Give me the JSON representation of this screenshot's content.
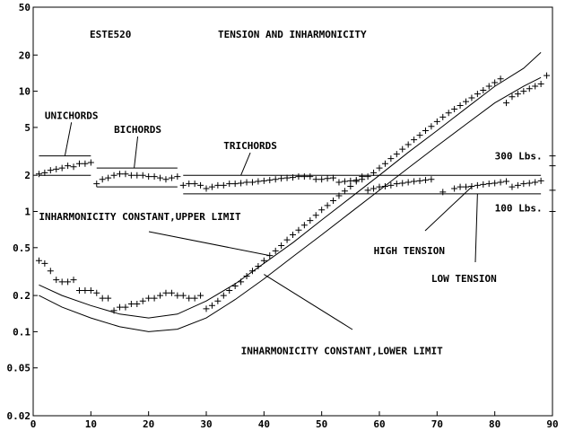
{
  "chart_data": {
    "type": "scatter",
    "title": "TENSION AND INHARMONICITY",
    "subtitle": "ESTE520",
    "xlabel": "",
    "ylabel": "",
    "xlim": [
      0,
      90
    ],
    "ylim": [
      0.02,
      50
    ],
    "yscale": "log",
    "grid": false,
    "x_ticks": [
      0,
      10,
      20,
      30,
      40,
      50,
      60,
      70,
      80,
      90
    ],
    "y_ticks": [
      0.02,
      0.05,
      0.1,
      0.2,
      0.5,
      1,
      2,
      5,
      10,
      20,
      50
    ],
    "y_tick_labels": [
      "0.02",
      "0.05",
      "0.1",
      "0.2",
      "0.5",
      "1",
      "2",
      "5",
      "10",
      "20",
      "50"
    ],
    "series": [
      {
        "name": "",
        "marker": "plus",
        "points": [
          [
            1,
            0.39
          ],
          [
            2,
            0.37
          ],
          [
            3,
            0.32
          ],
          [
            4,
            0.27
          ],
          [
            5,
            0.26
          ],
          [
            6,
            0.26
          ],
          [
            7,
            0.27
          ],
          [
            8,
            0.22
          ],
          [
            9,
            0.22
          ],
          [
            10,
            0.22
          ],
          [
            11,
            0.21
          ],
          [
            12,
            0.19
          ],
          [
            13,
            0.19
          ],
          [
            14,
            0.15
          ],
          [
            15,
            0.16
          ],
          [
            16,
            0.16
          ],
          [
            17,
            0.17
          ],
          [
            18,
            0.17
          ],
          [
            19,
            0.18
          ],
          [
            20,
            0.19
          ],
          [
            21,
            0.19
          ],
          [
            22,
            0.2
          ],
          [
            23,
            0.21
          ],
          [
            24,
            0.21
          ],
          [
            25,
            0.2
          ],
          [
            26,
            0.2
          ],
          [
            27,
            0.19
          ],
          [
            28,
            0.19
          ],
          [
            29,
            0.2
          ],
          [
            30,
            0.155
          ],
          [
            31,
            0.165
          ],
          [
            32,
            0.18
          ],
          [
            33,
            0.2
          ],
          [
            34,
            0.22
          ],
          [
            35,
            0.24
          ],
          [
            36,
            0.26
          ],
          [
            37,
            0.29
          ],
          [
            38,
            0.32
          ],
          [
            39,
            0.35
          ],
          [
            40,
            0.39
          ],
          [
            41,
            0.43
          ],
          [
            42,
            0.47
          ],
          [
            43,
            0.52
          ],
          [
            44,
            0.58
          ],
          [
            45,
            0.64
          ],
          [
            46,
            0.7
          ],
          [
            47,
            0.77
          ],
          [
            48,
            0.84
          ],
          [
            49,
            0.93
          ],
          [
            50,
            1.03
          ],
          [
            51,
            1.12
          ],
          [
            52,
            1.23
          ],
          [
            53,
            1.35
          ],
          [
            54,
            1.48
          ],
          [
            55,
            1.62
          ],
          [
            56,
            1.78
          ],
          [
            57,
            1.95
          ],
          [
            58,
            1.95
          ],
          [
            59,
            2.1
          ],
          [
            60,
            2.3
          ],
          [
            61,
            2.5
          ],
          [
            62,
            2.75
          ],
          [
            63,
            3.0
          ],
          [
            64,
            3.3
          ],
          [
            65,
            3.6
          ],
          [
            66,
            3.95
          ],
          [
            67,
            4.3
          ],
          [
            68,
            4.7
          ],
          [
            69,
            5.1
          ],
          [
            70,
            5.6
          ],
          [
            71,
            6.1
          ],
          [
            72,
            6.6
          ],
          [
            73,
            7.1
          ],
          [
            74,
            7.6
          ],
          [
            75,
            8.2
          ],
          [
            76,
            8.8
          ],
          [
            77,
            9.5
          ],
          [
            78,
            10.2
          ],
          [
            79,
            11.0
          ],
          [
            80,
            11.8
          ],
          [
            81,
            12.7
          ],
          [
            82,
            8.0
          ],
          [
            83,
            9.0
          ],
          [
            84,
            9.5
          ],
          [
            85,
            10.0
          ],
          [
            86,
            10.5
          ],
          [
            87,
            11.0
          ],
          [
            88,
            11.5
          ],
          [
            89,
            13.5
          ],
          [
            1,
            2.05
          ],
          [
            2,
            2.1
          ],
          [
            3,
            2.2
          ],
          [
            4,
            2.25
          ],
          [
            5,
            2.3
          ],
          [
            6,
            2.4
          ],
          [
            7,
            2.35
          ],
          [
            8,
            2.5
          ],
          [
            9,
            2.5
          ],
          [
            10,
            2.55
          ],
          [
            11,
            1.7
          ],
          [
            12,
            1.85
          ],
          [
            13,
            1.9
          ],
          [
            14,
            2.0
          ],
          [
            15,
            2.05
          ],
          [
            16,
            2.05
          ],
          [
            17,
            2.0
          ],
          [
            18,
            2.0
          ],
          [
            19,
            2.0
          ],
          [
            20,
            1.95
          ],
          [
            21,
            1.95
          ],
          [
            22,
            1.9
          ],
          [
            23,
            1.85
          ],
          [
            24,
            1.9
          ],
          [
            25,
            1.95
          ],
          [
            26,
            1.65
          ],
          [
            27,
            1.7
          ],
          [
            28,
            1.7
          ],
          [
            29,
            1.65
          ],
          [
            30,
            1.55
          ],
          [
            31,
            1.6
          ],
          [
            32,
            1.65
          ],
          [
            33,
            1.65
          ],
          [
            34,
            1.7
          ],
          [
            35,
            1.7
          ],
          [
            36,
            1.72
          ],
          [
            37,
            1.75
          ],
          [
            38,
            1.75
          ],
          [
            39,
            1.78
          ],
          [
            40,
            1.8
          ],
          [
            41,
            1.82
          ],
          [
            42,
            1.85
          ],
          [
            43,
            1.88
          ],
          [
            44,
            1.9
          ],
          [
            45,
            1.92
          ],
          [
            46,
            1.95
          ],
          [
            47,
            1.95
          ],
          [
            48,
            1.95
          ],
          [
            49,
            1.85
          ],
          [
            50,
            1.85
          ],
          [
            51,
            1.88
          ],
          [
            52,
            1.9
          ],
          [
            53,
            1.75
          ],
          [
            54,
            1.78
          ],
          [
            55,
            1.8
          ],
          [
            56,
            1.82
          ],
          [
            57,
            1.85
          ],
          [
            58,
            1.5
          ],
          [
            59,
            1.55
          ],
          [
            60,
            1.6
          ],
          [
            61,
            1.62
          ],
          [
            62,
            1.65
          ],
          [
            63,
            1.7
          ],
          [
            64,
            1.72
          ],
          [
            65,
            1.75
          ],
          [
            66,
            1.78
          ],
          [
            67,
            1.8
          ],
          [
            68,
            1.82
          ],
          [
            69,
            1.85
          ],
          [
            71,
            1.45
          ],
          [
            73,
            1.55
          ],
          [
            74,
            1.6
          ],
          [
            75,
            1.6
          ],
          [
            76,
            1.62
          ],
          [
            77,
            1.65
          ],
          [
            78,
            1.68
          ],
          [
            79,
            1.7
          ],
          [
            80,
            1.72
          ],
          [
            81,
            1.75
          ],
          [
            82,
            1.78
          ],
          [
            83,
            1.6
          ],
          [
            84,
            1.65
          ],
          [
            85,
            1.7
          ],
          [
            86,
            1.72
          ],
          [
            87,
            1.75
          ],
          [
            88,
            1.8
          ],
          [
            90,
            2.9
          ],
          [
            90,
            2.4
          ],
          [
            90,
            1.5
          ],
          [
            90,
            1.0
          ]
        ]
      }
    ],
    "curves": [
      {
        "name": "upper_limit",
        "points": [
          [
            1,
            0.245
          ],
          [
            5,
            0.2
          ],
          [
            10,
            0.165
          ],
          [
            15,
            0.14
          ],
          [
            20,
            0.13
          ],
          [
            25,
            0.14
          ],
          [
            30,
            0.18
          ],
          [
            35,
            0.25
          ],
          [
            40,
            0.37
          ],
          [
            45,
            0.55
          ],
          [
            50,
            0.85
          ],
          [
            55,
            1.3
          ],
          [
            60,
            2.0
          ],
          [
            65,
            3.1
          ],
          [
            70,
            4.7
          ],
          [
            75,
            7.2
          ],
          [
            80,
            11.0
          ],
          [
            85,
            15.5
          ],
          [
            88,
            21.0
          ]
        ]
      },
      {
        "name": "lower_limit",
        "points": [
          [
            1,
            0.2
          ],
          [
            5,
            0.16
          ],
          [
            10,
            0.13
          ],
          [
            15,
            0.11
          ],
          [
            20,
            0.1
          ],
          [
            25,
            0.105
          ],
          [
            30,
            0.13
          ],
          [
            35,
            0.185
          ],
          [
            40,
            0.275
          ],
          [
            45,
            0.42
          ],
          [
            50,
            0.64
          ],
          [
            55,
            0.98
          ],
          [
            60,
            1.5
          ],
          [
            65,
            2.3
          ],
          [
            70,
            3.5
          ],
          [
            75,
            5.3
          ],
          [
            80,
            8.0
          ],
          [
            85,
            11.0
          ],
          [
            88,
            13.0
          ]
        ]
      }
    ],
    "reference_lines": [
      {
        "name": "unichord_upper",
        "x": [
          1,
          10
        ],
        "y": 2.9
      },
      {
        "name": "unichord_lower",
        "x": [
          1,
          10
        ],
        "y": 2.0
      },
      {
        "name": "bichord_upper",
        "x": [
          11,
          25
        ],
        "y": 2.3
      },
      {
        "name": "bichord_lower",
        "x": [
          11,
          25
        ],
        "y": 1.6
      },
      {
        "name": "trichord_300",
        "x": [
          26,
          88
        ],
        "y": 2.0
      },
      {
        "name": "trichord_100",
        "x": [
          26,
          88
        ],
        "y": 1.4
      }
    ],
    "annotations": [
      {
        "text": "UNICHORDS",
        "at": [
          2,
          5.9
        ],
        "pointer_to": [
          5.5,
          2.9
        ]
      },
      {
        "text": "BICHORDS",
        "at": [
          14,
          4.5
        ],
        "pointer_to": [
          17.5,
          2.3
        ]
      },
      {
        "text": "TRICHORDS",
        "at": [
          33,
          3.3
        ],
        "pointer_to": [
          36,
          2.0
        ]
      },
      {
        "text": "300 Lbs.",
        "at": [
          80,
          2.7
        ]
      },
      {
        "text": "100 Lbs.",
        "at": [
          80,
          1.0
        ]
      },
      {
        "text": "INHARMONICITY CONSTANT,UPPER LIMIT",
        "at": [
          1,
          0.85
        ],
        "pointer_to": [
          41,
          0.43
        ]
      },
      {
        "text": "HIGH TENSION",
        "at": [
          59,
          0.44
        ],
        "pointer_to": [
          76,
          1.6
        ]
      },
      {
        "text": "LOW TENSION",
        "at": [
          69,
          0.26
        ],
        "pointer_to": [
          77,
          1.4
        ]
      },
      {
        "text": "INHARMONICITY CONSTANT,LOWER LIMIT",
        "at": [
          36,
          0.065
        ],
        "pointer_to": [
          40,
          0.3
        ]
      }
    ]
  }
}
